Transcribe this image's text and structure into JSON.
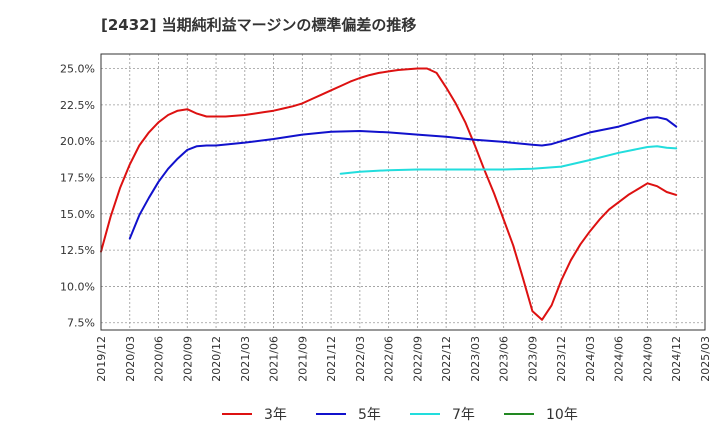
{
  "chart_data": {
    "type": "line",
    "title": "[2432]  当期純利益マージンの標準偏差の推移",
    "xlabel": "",
    "ylabel": "",
    "x_ticks": [
      "2019/12",
      "2020/03",
      "2020/06",
      "2020/09",
      "2020/12",
      "2021/03",
      "2021/06",
      "2021/09",
      "2021/12",
      "2022/03",
      "2022/06",
      "2022/09",
      "2022/12",
      "2023/03",
      "2023/06",
      "2023/09",
      "2023/12",
      "2024/03",
      "2024/06",
      "2024/09",
      "2024/12",
      "2025/03"
    ],
    "y_ticks": [
      "7.5%",
      "10.0%",
      "12.5%",
      "15.0%",
      "17.5%",
      "20.0%",
      "22.5%",
      "25.0%"
    ],
    "y_tick_values": [
      7.5,
      10.0,
      12.5,
      15.0,
      17.5,
      20.0,
      22.5,
      25.0
    ],
    "ylim": [
      7.0,
      26.0
    ],
    "grid": true,
    "legend_position": "bottom",
    "series": [
      {
        "name": "3年",
        "color": "#dd1111",
        "points": [
          [
            "2019/12",
            12.4
          ],
          [
            "2020/01",
            14.8
          ],
          [
            "2020/02",
            16.8
          ],
          [
            "2020/03",
            18.4
          ],
          [
            "2020/04",
            19.7
          ],
          [
            "2020/05",
            20.6
          ],
          [
            "2020/06",
            21.3
          ],
          [
            "2020/07",
            21.8
          ],
          [
            "2020/08",
            22.1
          ],
          [
            "2020/09",
            22.2
          ],
          [
            "2020/10",
            21.9
          ],
          [
            "2020/11",
            21.7
          ],
          [
            "2020/12",
            21.7
          ],
          [
            "2021/01",
            21.7
          ],
          [
            "2021/02",
            21.75
          ],
          [
            "2021/03",
            21.8
          ],
          [
            "2021/04",
            21.9
          ],
          [
            "2021/05",
            22.0
          ],
          [
            "2021/06",
            22.1
          ],
          [
            "2021/07",
            22.25
          ],
          [
            "2021/08",
            22.4
          ],
          [
            "2021/09",
            22.6
          ],
          [
            "2021/10",
            22.9
          ],
          [
            "2021/11",
            23.2
          ],
          [
            "2021/12",
            23.5
          ],
          [
            "2022/01",
            23.8
          ],
          [
            "2022/02",
            24.1
          ],
          [
            "2022/03",
            24.35
          ],
          [
            "2022/04",
            24.55
          ],
          [
            "2022/05",
            24.7
          ],
          [
            "2022/06",
            24.8
          ],
          [
            "2022/07",
            24.9
          ],
          [
            "2022/08",
            24.95
          ],
          [
            "2022/09",
            25.0
          ],
          [
            "2022/10",
            25.0
          ],
          [
            "2022/11",
            24.7
          ],
          [
            "2022/12",
            23.7
          ],
          [
            "2023/01",
            22.6
          ],
          [
            "2023/02",
            21.3
          ],
          [
            "2023/03",
            19.7
          ],
          [
            "2023/04",
            18.0
          ],
          [
            "2023/05",
            16.4
          ],
          [
            "2023/06",
            14.6
          ],
          [
            "2023/07",
            12.8
          ],
          [
            "2023/08",
            10.6
          ],
          [
            "2023/09",
            8.3
          ],
          [
            "2023/10",
            7.7
          ],
          [
            "2023/11",
            8.7
          ],
          [
            "2023/12",
            10.4
          ],
          [
            "2024/01",
            11.8
          ],
          [
            "2024/02",
            12.9
          ],
          [
            "2024/03",
            13.8
          ],
          [
            "2024/04",
            14.6
          ],
          [
            "2024/05",
            15.3
          ],
          [
            "2024/06",
            15.8
          ],
          [
            "2024/07",
            16.3
          ],
          [
            "2024/08",
            16.7
          ],
          [
            "2024/09",
            17.1
          ],
          [
            "2024/10",
            16.9
          ],
          [
            "2024/11",
            16.5
          ],
          [
            "2024/12",
            16.3
          ]
        ]
      },
      {
        "name": "5年",
        "color": "#1111cc",
        "points": [
          [
            "2020/03",
            13.3
          ],
          [
            "2020/04",
            14.9
          ],
          [
            "2020/05",
            16.1
          ],
          [
            "2020/06",
            17.2
          ],
          [
            "2020/07",
            18.1
          ],
          [
            "2020/08",
            18.8
          ],
          [
            "2020/09",
            19.4
          ],
          [
            "2020/10",
            19.65
          ],
          [
            "2020/11",
            19.7
          ],
          [
            "2020/12",
            19.7
          ],
          [
            "2021/03",
            19.9
          ],
          [
            "2021/06",
            20.15
          ],
          [
            "2021/09",
            20.45
          ],
          [
            "2021/12",
            20.65
          ],
          [
            "2022/03",
            20.7
          ],
          [
            "2022/06",
            20.6
          ],
          [
            "2022/09",
            20.45
          ],
          [
            "2022/12",
            20.3
          ],
          [
            "2023/03",
            20.1
          ],
          [
            "2023/06",
            19.95
          ],
          [
            "2023/09",
            19.75
          ],
          [
            "2023/10",
            19.7
          ],
          [
            "2023/11",
            19.8
          ],
          [
            "2023/12",
            20.0
          ],
          [
            "2024/03",
            20.6
          ],
          [
            "2024/06",
            21.0
          ],
          [
            "2024/09",
            21.6
          ],
          [
            "2024/10",
            21.65
          ],
          [
            "2024/11",
            21.5
          ],
          [
            "2024/12",
            21.0
          ]
        ]
      },
      {
        "name": "7年",
        "color": "#22dddd",
        "points": [
          [
            "2022/01",
            17.75
          ],
          [
            "2022/03",
            17.9
          ],
          [
            "2022/06",
            18.0
          ],
          [
            "2022/09",
            18.05
          ],
          [
            "2022/12",
            18.05
          ],
          [
            "2023/03",
            18.05
          ],
          [
            "2023/06",
            18.05
          ],
          [
            "2023/09",
            18.1
          ],
          [
            "2023/12",
            18.25
          ],
          [
            "2024/03",
            18.7
          ],
          [
            "2024/06",
            19.2
          ],
          [
            "2024/09",
            19.6
          ],
          [
            "2024/10",
            19.65
          ],
          [
            "2024/11",
            19.55
          ],
          [
            "2024/12",
            19.5
          ]
        ]
      },
      {
        "name": "10年",
        "color": "#228822",
        "points": []
      }
    ]
  }
}
